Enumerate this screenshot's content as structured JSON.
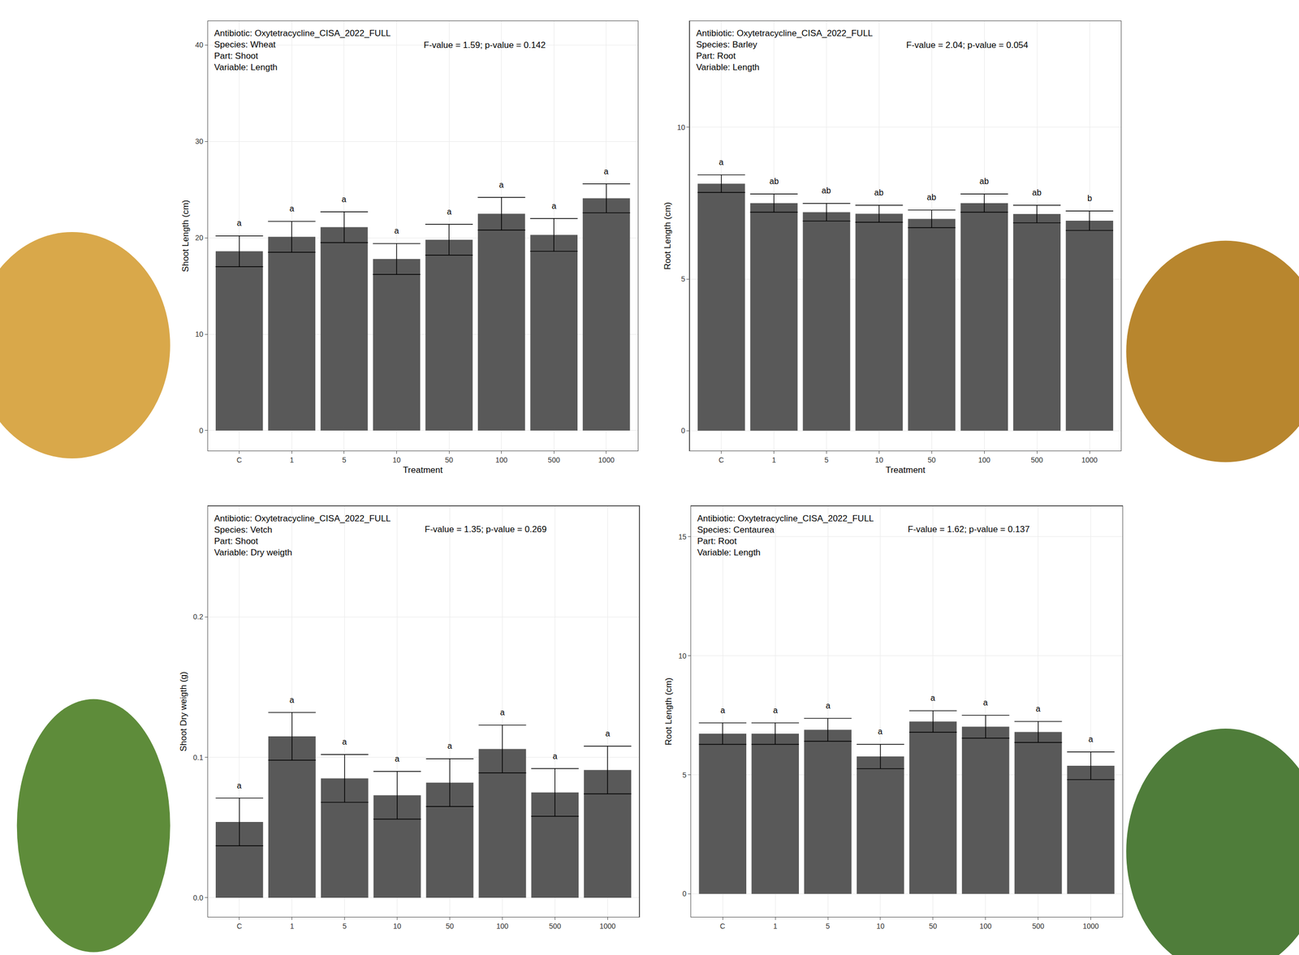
{
  "chart_data": [
    {
      "type": "bar",
      "info": [
        "Antibiotic: Oxytetracycline_CISA_2022_FULL",
        "Species: Wheat",
        "Part: Shoot",
        "Variable: Length"
      ],
      "stats": "F-value = 1.59; p-value = 0.142",
      "x_label": "Treatment",
      "y_label": "Shoot Length (cm)",
      "categories": [
        "C",
        "1",
        "5",
        "10",
        "50",
        "100",
        "500",
        "1000"
      ],
      "values": [
        18.6,
        20.1,
        21.1,
        17.8,
        19.8,
        22.5,
        20.3,
        24.1
      ],
      "errors": [
        1.6,
        1.6,
        1.6,
        1.6,
        1.6,
        1.7,
        1.7,
        1.5
      ],
      "group_letters": [
        "a",
        "a",
        "a",
        "a",
        "a",
        "a",
        "a",
        "a"
      ],
      "ylim": [
        -2.1,
        42.5
      ],
      "yticks": [
        0,
        10,
        20,
        30,
        40
      ],
      "color": "#595959",
      "grid": true
    },
    {
      "type": "bar",
      "info": [
        "Antibiotic: Oxytetracycline_CISA_2022_FULL",
        "Species: Barley",
        "Part: Root",
        "Variable: Length"
      ],
      "stats": "F-value = 2.04; p-value = 0.054",
      "x_label": "Treatment",
      "y_label": "Root Length (cm)",
      "categories": [
        "C",
        "1",
        "5",
        "10",
        "50",
        "100",
        "500",
        "1000"
      ],
      "values": [
        8.14,
        7.5,
        7.2,
        7.15,
        6.98,
        7.5,
        7.14,
        6.92
      ],
      "errors": [
        0.29,
        0.3,
        0.29,
        0.28,
        0.29,
        0.3,
        0.29,
        0.32
      ],
      "group_letters": [
        "a",
        "ab",
        "ab",
        "ab",
        "ab",
        "ab",
        "ab",
        "b"
      ],
      "ylim": [
        -0.66,
        13.5
      ],
      "yticks": [
        0,
        5,
        10
      ],
      "color": "#595959",
      "grid": true
    },
    {
      "type": "bar",
      "info": [
        "Antibiotic: Oxytetracycline_CISA_2022_FULL",
        "Species: Vetch",
        "Part: Shoot",
        "Variable: Dry weigth"
      ],
      "stats": "F-value = 1.35; p-value = 0.269",
      "y_label": "Shoot Dry weigth (g)",
      "categories": [
        "C",
        "1",
        "5",
        "10",
        "50",
        "100",
        "500",
        "1000"
      ],
      "values": [
        0.054,
        0.115,
        0.085,
        0.073,
        0.082,
        0.106,
        0.075,
        0.091
      ],
      "errors": [
        0.017,
        0.017,
        0.017,
        0.017,
        0.017,
        0.017,
        0.017,
        0.017
      ],
      "group_letters": [
        "a",
        "a",
        "a",
        "a",
        "a",
        "a",
        "a",
        "a"
      ],
      "ylim": [
        -0.0136,
        0.279
      ],
      "yticks": [
        {
          "value": 0,
          "label": "0.0"
        },
        0.1,
        0.2
      ],
      "color": "#595959",
      "grid": true
    },
    {
      "type": "bar",
      "info": [
        "Antibiotic: Oxytetracycline_CISA_2022_FULL",
        "Species: Centaurea",
        "Part: Root",
        "Variable: Length"
      ],
      "stats": "F-value = 1.62; p-value = 0.137",
      "y_label": "Root Length (cm)",
      "categories": [
        "C",
        "1",
        "5",
        "10",
        "50",
        "100",
        "500",
        "1000"
      ],
      "values": [
        6.73,
        6.73,
        6.89,
        5.77,
        7.24,
        7.02,
        6.8,
        5.38
      ],
      "errors": [
        0.45,
        0.45,
        0.48,
        0.51,
        0.45,
        0.48,
        0.44,
        0.58
      ],
      "group_letters": [
        "a",
        "a",
        "a",
        "a",
        "a",
        "a",
        "a",
        "a"
      ],
      "ylim": [
        -0.96,
        16.28
      ],
      "yticks": [
        0,
        5,
        10,
        15
      ],
      "color": "#595959",
      "grid": true
    }
  ]
}
